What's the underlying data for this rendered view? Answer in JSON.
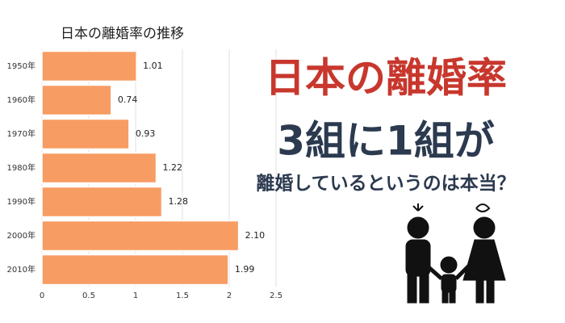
{
  "chart_data": {
    "type": "barh",
    "title": "日本の離婚率の推移",
    "categories": [
      "1950年",
      "1960年",
      "1970年",
      "1980年",
      "1990年",
      "2000年",
      "2010年"
    ],
    "values": [
      1.01,
      0.74,
      0.93,
      1.22,
      1.28,
      2.1,
      1.99
    ],
    "value_labels": [
      "1.01",
      "0.74",
      "0.93",
      "1.22",
      "1.28",
      "2.10",
      "1.99"
    ],
    "color": "#f79c62",
    "xlim": [
      0,
      2.5
    ],
    "xticks": [
      0,
      0.5,
      1,
      1.5,
      2,
      2.5
    ],
    "grid": true
  },
  "headline": {
    "line1": "日本の離婚率",
    "line2": "3組に1組が",
    "line3": "離婚しているというのは本当？"
  }
}
